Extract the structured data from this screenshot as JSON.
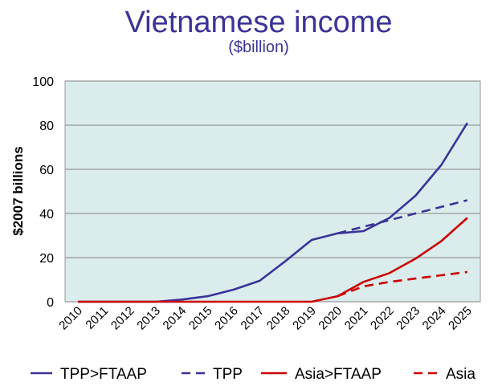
{
  "chart_data": {
    "type": "line",
    "title": "Vietnamese income",
    "subtitle": "($billion)",
    "xlabel": "",
    "ylabel": "$2007 billions",
    "ylim": [
      0,
      100
    ],
    "yticks": [
      0,
      20,
      40,
      60,
      80,
      100
    ],
    "grid": true,
    "legend_position": "bottom",
    "x": [
      "2010",
      "2011",
      "2012",
      "2013",
      "2014",
      "2015",
      "2016",
      "2017",
      "2018",
      "2019",
      "2020",
      "2021",
      "2022",
      "2023",
      "2024",
      "2025"
    ],
    "series": [
      {
        "name": "TPP>FTAAP",
        "color": "#3a3399",
        "dash": false,
        "values": [
          0,
          0,
          0,
          0,
          1,
          2.5,
          5.5,
          9.5,
          18.5,
          28,
          31,
          32,
          38,
          48,
          62,
          81
        ]
      },
      {
        "name": "TPP",
        "color": "#3a3399",
        "dash": true,
        "values": [
          null,
          null,
          null,
          null,
          null,
          null,
          null,
          null,
          null,
          null,
          31,
          34,
          37,
          40,
          43,
          46
        ]
      },
      {
        "name": "Asia>FTAAP",
        "color": "#cc0000",
        "dash": false,
        "values": [
          0,
          0,
          0,
          0,
          0,
          0,
          0,
          0,
          0,
          0,
          2.5,
          9,
          13,
          19.5,
          27.5,
          38
        ]
      },
      {
        "name": "Asia",
        "color": "#cc0000",
        "dash": true,
        "values": [
          null,
          null,
          null,
          null,
          null,
          null,
          null,
          null,
          null,
          null,
          2.5,
          7,
          9,
          10.5,
          12,
          13.5
        ]
      }
    ],
    "plot_background": "#daecec"
  }
}
